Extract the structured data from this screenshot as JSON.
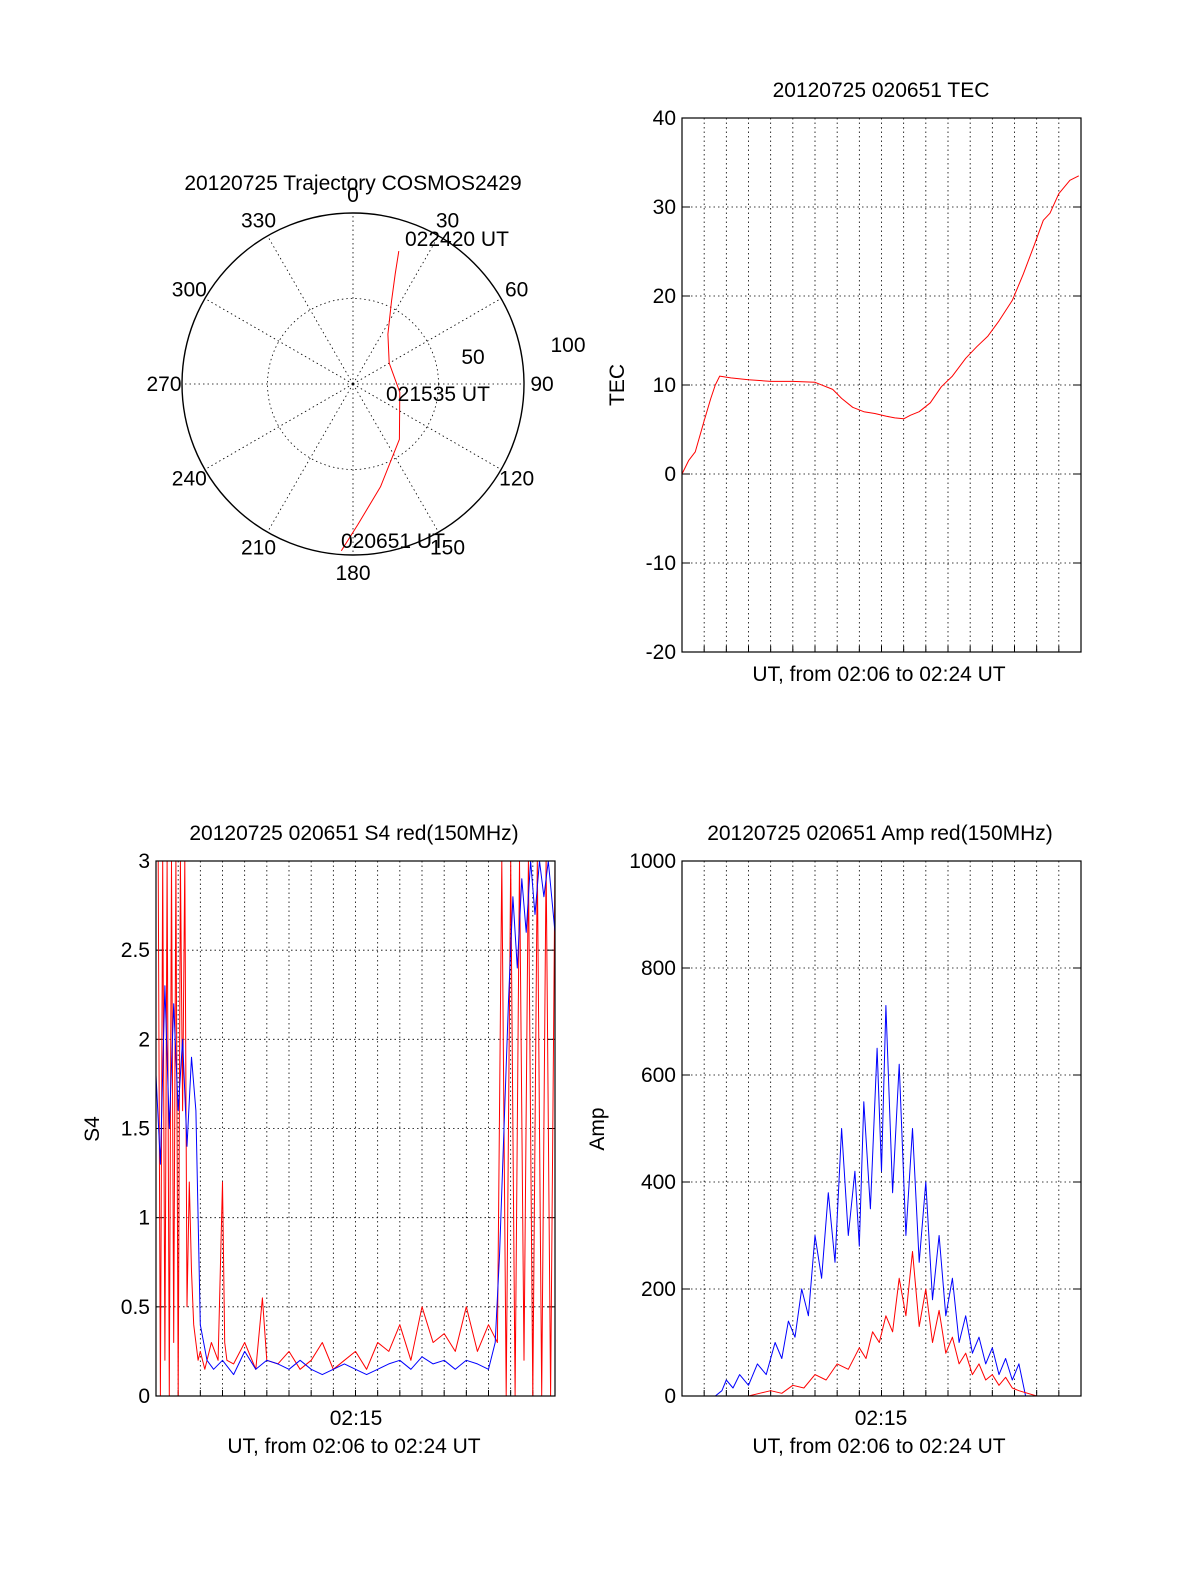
{
  "colors": {
    "red": "#ff0000",
    "blue": "#0000ff",
    "axis": "#000000"
  },
  "chart_data": [
    {
      "type": "polar",
      "title": "20120725 Trajectory COSMOS2429",
      "angle_labels": [
        "0",
        "30",
        "60",
        "90",
        "120",
        "150",
        "180",
        "210",
        "240",
        "270",
        "300",
        "330"
      ],
      "radius_labels": [
        "50",
        "100"
      ],
      "point_labels": {
        "start": "020651 UT",
        "mid": "021535 UT",
        "end": "022420 UT"
      },
      "series": [
        {
          "color": "red",
          "points": [
            {
              "az": 184,
              "el": 2
            },
            {
              "az": 178,
              "el": 16
            },
            {
              "az": 165,
              "el": 34
            },
            {
              "az": 140,
              "el": 52
            },
            {
              "az": 100,
              "el": 65
            },
            {
              "az": 60,
              "el": 68
            },
            {
              "az": 35,
              "el": 58
            },
            {
              "az": 25,
              "el": 42
            },
            {
              "az": 21,
              "el": 28
            },
            {
              "az": 19,
              "el": 16
            }
          ]
        }
      ]
    },
    {
      "type": "line",
      "title": "20120725 020651 TEC",
      "ylabel": "TEC",
      "xlabel": "UT, from 02:06 to 02:24 UT",
      "xlim": [
        0,
        18
      ],
      "ylim": [
        -20,
        40
      ],
      "yticks": [
        "-20",
        "-10",
        "0",
        "10",
        "20",
        "30",
        "40"
      ],
      "grid": true,
      "series": [
        {
          "color": "red",
          "x": [
            0.0,
            0.3,
            0.6,
            1.0,
            1.3,
            1.5,
            1.7,
            2.2,
            3.0,
            4.0,
            5.0,
            6.0,
            6.8,
            7.2,
            7.7,
            8.2,
            8.7,
            9.2,
            9.6,
            10.0,
            10.3,
            10.7,
            11.2,
            11.7,
            12.2,
            12.8,
            13.3,
            13.8,
            14.3,
            14.9,
            15.4,
            15.9,
            16.3,
            16.6,
            17.0,
            17.5,
            17.9
          ],
          "y": [
            0,
            1.5,
            2.5,
            6,
            8.5,
            10,
            11,
            10.8,
            10.6,
            10.4,
            10.4,
            10.3,
            9.5,
            8.5,
            7.5,
            7.0,
            6.8,
            6.5,
            6.3,
            6.2,
            6.6,
            7.0,
            8.0,
            9.8,
            11.0,
            13.0,
            14.3,
            15.5,
            17.2,
            19.5,
            22.5,
            25.8,
            28.5,
            29.3,
            31.5,
            33.0,
            33.5
          ]
        }
      ]
    },
    {
      "type": "line",
      "title": "20120725 020651 S4 red(150MHz)",
      "ylabel": "S4",
      "xlabel": "UT, from 02:06 to 02:24 UT",
      "xtick_label": "02:15",
      "xlim": [
        0,
        18
      ],
      "ylim": [
        0,
        3
      ],
      "yticks": [
        "0",
        "0.5",
        "1",
        "1.5",
        "2",
        "2.5",
        "3"
      ],
      "grid": true,
      "series": [
        {
          "color": "red",
          "x": [
            0.1,
            0.2,
            0.3,
            0.4,
            0.5,
            0.6,
            0.7,
            0.8,
            0.9,
            1.0,
            1.1,
            1.2,
            1.3,
            1.4,
            1.5,
            1.6,
            1.7,
            1.8,
            1.9,
            2.0,
            2.2,
            2.5,
            2.8,
            3.0,
            3.1,
            3.2,
            3.5,
            4.0,
            4.5,
            4.8,
            5.0,
            5.5,
            6.0,
            6.5,
            7.0,
            7.5,
            8.0,
            8.5,
            9.0,
            9.5,
            10.0,
            10.5,
            11.0,
            11.5,
            12.0,
            12.5,
            13.0,
            13.5,
            14.0,
            14.5,
            15.0,
            15.4,
            15.6,
            15.8,
            16.0,
            16.2,
            16.4,
            16.6,
            16.8,
            17.0,
            17.2,
            17.4,
            17.6,
            17.8,
            18.0
          ],
          "y": [
            3,
            0,
            3,
            0.2,
            3,
            0,
            3,
            0.3,
            3,
            0,
            3,
            1.6,
            3,
            0.5,
            1.2,
            0.7,
            0.4,
            0.3,
            0.2,
            0.25,
            0.15,
            0.3,
            0.2,
            1.2,
            0.3,
            0.2,
            0.18,
            0.3,
            0.15,
            0.55,
            0.2,
            0.18,
            0.25,
            0.15,
            0.2,
            0.3,
            0.15,
            0.2,
            0.25,
            0.15,
            0.3,
            0.25,
            0.4,
            0.2,
            0.5,
            0.3,
            0.35,
            0.25,
            0.5,
            0.25,
            0.4,
            0.3,
            3,
            0,
            3,
            0,
            3,
            0.2,
            3,
            0,
            3,
            0,
            3,
            0,
            3
          ]
        },
        {
          "color": "blue",
          "x": [
            0.0,
            0.2,
            0.4,
            0.6,
            0.8,
            1.0,
            1.2,
            1.4,
            1.6,
            1.8,
            2.0,
            2.3,
            2.6,
            3.0,
            3.5,
            4.0,
            4.5,
            5.0,
            5.5,
            6.0,
            6.5,
            7.0,
            7.5,
            8.0,
            8.5,
            9.0,
            9.5,
            10.0,
            10.5,
            11.0,
            11.5,
            12.0,
            12.5,
            13.0,
            13.5,
            14.0,
            14.5,
            15.0,
            15.3,
            15.5,
            15.7,
            15.9,
            16.1,
            16.3,
            16.5,
            16.7,
            16.9,
            17.1,
            17.3,
            17.5,
            17.7,
            18.0
          ],
          "y": [
            1.8,
            1.3,
            2.3,
            1.5,
            2.2,
            1.6,
            2.0,
            1.4,
            1.9,
            1.6,
            0.4,
            0.2,
            0.15,
            0.2,
            0.12,
            0.25,
            0.15,
            0.2,
            0.18,
            0.15,
            0.2,
            0.15,
            0.12,
            0.15,
            0.18,
            0.15,
            0.12,
            0.15,
            0.18,
            0.2,
            0.15,
            0.22,
            0.18,
            0.2,
            0.15,
            0.2,
            0.18,
            0.15,
            0.3,
            0.8,
            1.5,
            2.2,
            2.8,
            2.4,
            2.9,
            2.6,
            3.0,
            2.7,
            3.0,
            2.8,
            3.0,
            2.6
          ]
        }
      ]
    },
    {
      "type": "line",
      "title": "20120725 020651 Amp red(150MHz)",
      "ylabel": "Amp",
      "xlabel": "UT, from 02:06 to 02:24 UT",
      "xtick_label": "02:15",
      "xlim": [
        0,
        18
      ],
      "ylim": [
        0,
        1000
      ],
      "yticks": [
        "0",
        "200",
        "400",
        "600",
        "800",
        "1000"
      ],
      "grid": true,
      "series": [
        {
          "color": "blue",
          "x": [
            0,
            1.5,
            1.8,
            2.0,
            2.3,
            2.6,
            3.0,
            3.4,
            3.8,
            4.2,
            4.5,
            4.8,
            5.1,
            5.4,
            5.7,
            6.0,
            6.3,
            6.6,
            6.9,
            7.2,
            7.5,
            7.8,
            8.0,
            8.2,
            8.5,
            8.8,
            9.0,
            9.2,
            9.5,
            9.8,
            10.1,
            10.4,
            10.7,
            11.0,
            11.3,
            11.6,
            11.9,
            12.2,
            12.5,
            12.8,
            13.1,
            13.4,
            13.7,
            14.0,
            14.3,
            14.6,
            14.9,
            15.2,
            15.5,
            16,
            18
          ],
          "y": [
            0,
            0,
            10,
            30,
            15,
            40,
            20,
            60,
            40,
            100,
            70,
            140,
            110,
            200,
            150,
            300,
            220,
            380,
            250,
            500,
            300,
            420,
            280,
            550,
            350,
            650,
            420,
            730,
            380,
            620,
            300,
            500,
            250,
            400,
            180,
            300,
            150,
            220,
            100,
            150,
            80,
            110,
            60,
            90,
            40,
            70,
            30,
            60,
            0,
            0,
            0
          ]
        },
        {
          "color": "red",
          "x": [
            0,
            3.0,
            3.5,
            4.0,
            4.5,
            5.0,
            5.5,
            6.0,
            6.5,
            7.0,
            7.5,
            8.0,
            8.3,
            8.6,
            8.9,
            9.2,
            9.5,
            9.8,
            10.1,
            10.4,
            10.7,
            11.0,
            11.3,
            11.6,
            11.9,
            12.2,
            12.5,
            12.8,
            13.1,
            13.4,
            13.7,
            14.0,
            14.3,
            14.6,
            14.9,
            15.2,
            16,
            18
          ],
          "y": [
            0,
            0,
            5,
            10,
            5,
            20,
            15,
            40,
            30,
            60,
            50,
            90,
            70,
            120,
            100,
            150,
            120,
            220,
            150,
            270,
            130,
            200,
            100,
            160,
            80,
            110,
            60,
            80,
            40,
            60,
            30,
            40,
            20,
            35,
            15,
            10,
            0,
            0
          ]
        }
      ]
    }
  ]
}
